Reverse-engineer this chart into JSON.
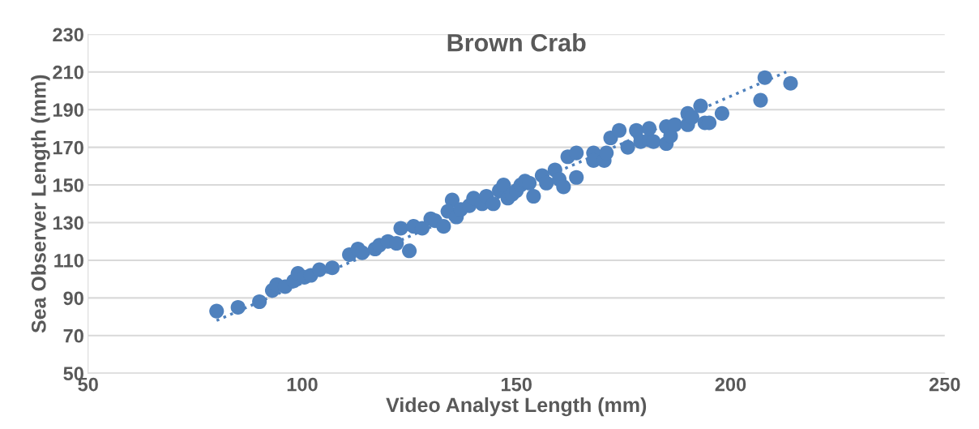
{
  "chart_data": {
    "type": "scatter",
    "title": "Brown Crab",
    "xlabel": "Video Analyst Length (mm)",
    "ylabel": "Sea Observer Length (mm)",
    "xlim": [
      50,
      250
    ],
    "ylim": [
      50,
      230
    ],
    "xticks": [
      50,
      100,
      150,
      200,
      250
    ],
    "yticks": [
      50,
      70,
      90,
      110,
      130,
      150,
      170,
      190,
      210,
      230
    ],
    "grid": "y",
    "legend": false,
    "marker": "circle",
    "series": [
      {
        "color": "#4f81bd",
        "x": [
          80,
          85,
          90,
          93,
          94,
          96,
          98,
          99,
          100.5,
          102,
          104,
          107,
          111,
          113,
          114,
          117,
          118,
          120,
          122,
          123,
          125,
          126,
          128,
          130,
          131,
          133,
          135,
          134,
          136,
          137,
          139,
          140,
          142,
          143,
          144.6,
          146,
          147,
          148,
          149,
          150,
          151,
          152,
          153,
          154,
          156,
          157,
          159,
          160,
          161,
          162,
          164,
          164,
          168,
          168,
          170.5,
          171,
          172,
          174,
          176,
          178,
          179,
          181,
          181,
          182,
          185,
          185,
          186,
          187,
          190,
          190,
          191,
          193,
          194,
          195,
          198,
          207,
          208,
          214
        ],
        "values": [
          83,
          85,
          88,
          94,
          97,
          96,
          99,
          103,
          101,
          102,
          105,
          106,
          113,
          116,
          114,
          116,
          118,
          120,
          119,
          127,
          115,
          128,
          127,
          132,
          131,
          128,
          142,
          136,
          133,
          137,
          139,
          143,
          140,
          144,
          140,
          147,
          150,
          143,
          145,
          147,
          150,
          152,
          151,
          144,
          155,
          151,
          158,
          153,
          149,
          165,
          167,
          154,
          167,
          163,
          163,
          167,
          175,
          179,
          170,
          179,
          173,
          174,
          180,
          173,
          181,
          172,
          176,
          182,
          182,
          188,
          186,
          192,
          183,
          183,
          188,
          195,
          207,
          204
        ]
      },
      {
        "type": "line",
        "color": "#4f81bd",
        "line_style": "dotted",
        "marker": "none",
        "x": [
          80,
          213
        ],
        "values": [
          78,
          210
        ]
      }
    ]
  }
}
